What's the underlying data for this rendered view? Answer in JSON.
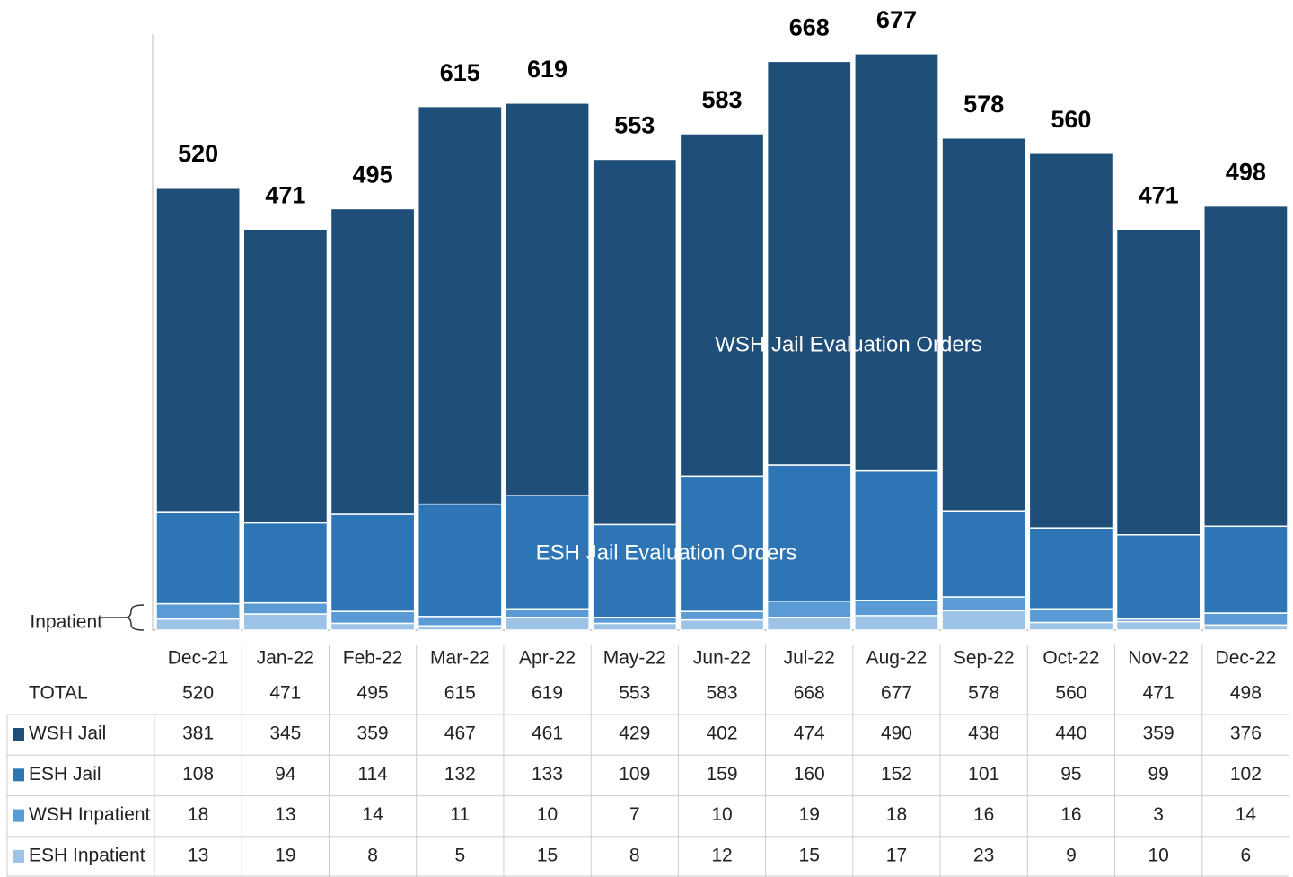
{
  "chart_data": {
    "type": "stacked_bar",
    "categories": [
      "Dec-21",
      "Jan-22",
      "Feb-22",
      "Mar-22",
      "Apr-22",
      "May-22",
      "Jun-22",
      "Jul-22",
      "Aug-22",
      "Sep-22",
      "Oct-22",
      "Nov-22",
      "Dec-22"
    ],
    "total_label": "TOTAL",
    "totals": [
      520,
      471,
      495,
      615,
      619,
      553,
      583,
      668,
      677,
      578,
      560,
      471,
      498
    ],
    "series": [
      {
        "name": "ESH Inpatient",
        "color": "#9dc3e6",
        "values": [
          13,
          19,
          8,
          5,
          15,
          8,
          12,
          15,
          17,
          23,
          9,
          10,
          6
        ]
      },
      {
        "name": "WSH Inpatient",
        "color": "#5b9bd5",
        "values": [
          18,
          13,
          14,
          11,
          10,
          7,
          10,
          19,
          18,
          16,
          16,
          3,
          14
        ]
      },
      {
        "name": "ESH Jail",
        "color": "#2e75b6",
        "values": [
          108,
          94,
          114,
          132,
          133,
          109,
          159,
          160,
          152,
          101,
          95,
          99,
          102
        ]
      },
      {
        "name": "WSH Jail",
        "color": "#1f4e79",
        "values": [
          381,
          345,
          359,
          467,
          461,
          429,
          402,
          474,
          490,
          438,
          440,
          359,
          376
        ]
      }
    ],
    "ylim": [
      0,
      700
    ],
    "annotations": [
      "WSH Jail Evaluation Orders",
      "ESH Jail Evaluation Orders",
      "Inpatient"
    ]
  }
}
